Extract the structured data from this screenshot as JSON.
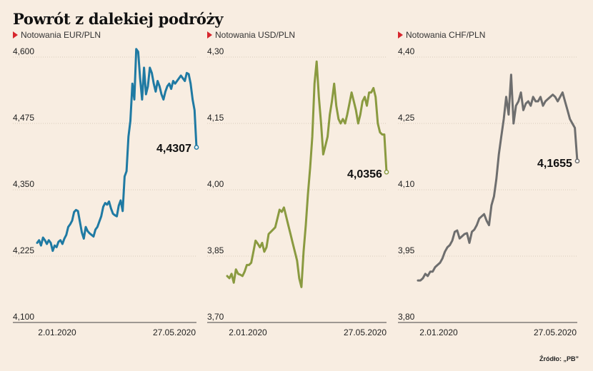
{
  "title": "Powrót z dalekiej podróży",
  "source": "Źródło: „PB”",
  "chart_data": [
    {
      "type": "line",
      "label": "Notowania EUR/PLN",
      "color": "#1f7aa3",
      "ylim": [
        4.1,
        4.6
      ],
      "yticks": [
        "4,100",
        "4,225",
        "4,350",
        "4,475",
        "4,600"
      ],
      "xticks": [
        "2.01.2020",
        "27.05.2020"
      ],
      "end_label": "4,4307",
      "values": [
        4.25,
        4.255,
        4.245,
        4.26,
        4.255,
        4.248,
        4.255,
        4.25,
        4.235,
        4.245,
        4.242,
        4.252,
        4.255,
        4.248,
        4.258,
        4.265,
        4.28,
        4.285,
        4.292,
        4.308,
        4.312,
        4.31,
        4.29,
        4.27,
        4.258,
        4.28,
        4.272,
        4.268,
        4.265,
        4.262,
        4.275,
        4.28,
        4.29,
        4.3,
        4.318,
        4.325,
        4.322,
        4.328,
        4.315,
        4.305,
        4.302,
        4.3,
        4.32,
        4.33,
        4.31,
        4.375,
        4.385,
        4.45,
        4.48,
        4.55,
        4.52,
        4.615,
        4.61,
        4.56,
        4.52,
        4.58,
        4.53,
        4.545,
        4.58,
        4.57,
        4.55,
        4.535,
        4.555,
        4.545,
        4.53,
        4.52,
        4.535,
        4.545,
        4.55,
        4.54,
        4.555,
        4.55,
        4.555,
        4.56,
        4.565,
        4.56,
        4.555,
        4.57,
        4.568,
        4.55,
        4.52,
        4.5,
        4.43
      ]
    },
    {
      "type": "line",
      "label": "Notowania USD/PLN",
      "color": "#8a9a40",
      "ylim": [
        3.7,
        4.3
      ],
      "yticks": [
        "3,70",
        "3,85",
        "4,00",
        "4,15",
        "4,30"
      ],
      "xticks": [
        "2.01.2020",
        "27.05.2020"
      ],
      "end_label": "4,0356",
      "values": [
        3.805,
        3.8,
        3.81,
        3.79,
        3.82,
        3.81,
        3.808,
        3.805,
        3.815,
        3.83,
        3.83,
        3.835,
        3.86,
        3.885,
        3.878,
        3.87,
        3.88,
        3.86,
        3.87,
        3.9,
        3.905,
        3.91,
        3.915,
        3.935,
        3.955,
        3.95,
        3.96,
        3.94,
        3.92,
        3.9,
        3.88,
        3.86,
        3.84,
        3.8,
        3.78,
        3.86,
        3.92,
        3.99,
        4.05,
        4.12,
        4.24,
        4.29,
        4.21,
        4.15,
        4.08,
        4.1,
        4.12,
        4.17,
        4.2,
        4.24,
        4.19,
        4.16,
        4.15,
        4.16,
        4.15,
        4.17,
        4.195,
        4.22,
        4.2,
        4.18,
        4.15,
        4.17,
        4.2,
        4.21,
        4.19,
        4.22,
        4.22,
        4.23,
        4.21,
        4.15,
        4.13,
        4.125,
        4.125,
        4.04
      ]
    },
    {
      "type": "line",
      "label": "Notowania CHF/PLN",
      "color": "#6e6e6e",
      "ylim": [
        3.8,
        4.4
      ],
      "yticks": [
        "3,80",
        "3,95",
        "4,10",
        "4,25",
        "4,40"
      ],
      "xticks": [
        "2.01.2020",
        "27.05.2020"
      ],
      "end_label": "4,1655",
      "values": [
        3.895,
        3.895,
        3.9,
        3.91,
        3.905,
        3.915,
        3.915,
        3.925,
        3.93,
        3.935,
        3.945,
        3.96,
        3.97,
        3.975,
        3.985,
        4.005,
        4.008,
        3.99,
        3.995,
        4.0,
        4.002,
        3.98,
        4.005,
        4.01,
        4.02,
        4.035,
        4.04,
        4.045,
        4.03,
        4.02,
        4.065,
        4.085,
        4.125,
        4.18,
        4.22,
        4.26,
        4.31,
        4.27,
        4.36,
        4.25,
        4.29,
        4.3,
        4.32,
        4.28,
        4.295,
        4.3,
        4.29,
        4.31,
        4.3,
        4.3,
        4.31,
        4.29,
        4.3,
        4.305,
        4.31,
        4.315,
        4.31,
        4.3,
        4.31,
        4.32,
        4.3,
        4.28,
        4.26,
        4.25,
        4.24,
        4.165
      ]
    }
  ]
}
